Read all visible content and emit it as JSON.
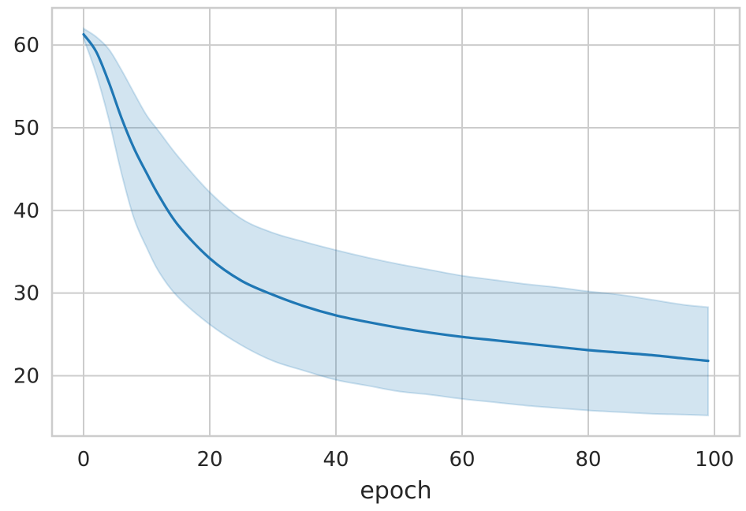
{
  "chart_data": {
    "type": "line",
    "title": "",
    "xlabel": "epoch",
    "ylabel": "",
    "xlim": [
      -5,
      104
    ],
    "ylim": [
      12.7,
      64.5
    ],
    "xticks": [
      0,
      20,
      40,
      60,
      80,
      100
    ],
    "yticks": [
      20,
      30,
      40,
      50,
      60
    ],
    "xtick_labels": [
      "0",
      "20",
      "40",
      "60",
      "80",
      "100"
    ],
    "ytick_labels": [
      "20",
      "30",
      "40",
      "50",
      "60"
    ],
    "grid": true,
    "legend": "none",
    "line_color": "#1f77b4",
    "band_color": "#1f77b4",
    "series": [
      {
        "x": [
          0,
          2,
          4,
          6,
          8,
          10,
          12,
          15,
          20,
          25,
          30,
          35,
          40,
          45,
          50,
          55,
          60,
          65,
          70,
          75,
          80,
          85,
          90,
          95,
          99
        ],
        "mean": [
          61.3,
          59.2,
          55.5,
          51.2,
          47.5,
          44.5,
          41.7,
          38.2,
          34.2,
          31.5,
          29.8,
          28.4,
          27.3,
          26.5,
          25.8,
          25.2,
          24.7,
          24.3,
          23.9,
          23.5,
          23.1,
          22.8,
          22.5,
          22.1,
          21.8
        ],
        "upper": [
          62.0,
          61.0,
          59.5,
          57.0,
          54.2,
          51.5,
          49.5,
          46.5,
          42.2,
          39.0,
          37.3,
          36.2,
          35.2,
          34.3,
          33.5,
          32.8,
          32.1,
          31.6,
          31.1,
          30.7,
          30.2,
          29.8,
          29.2,
          28.6,
          28.3
        ],
        "lower": [
          60.8,
          56.5,
          51.0,
          44.5,
          39.0,
          35.5,
          32.5,
          29.5,
          26.2,
          23.7,
          21.8,
          20.6,
          19.5,
          18.8,
          18.1,
          17.7,
          17.2,
          16.8,
          16.4,
          16.1,
          15.8,
          15.6,
          15.4,
          15.3,
          15.2
        ]
      }
    ]
  }
}
